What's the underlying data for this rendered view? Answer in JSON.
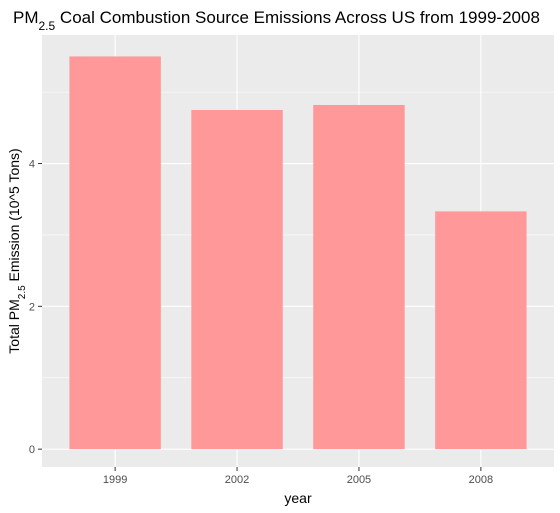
{
  "chart_data": {
    "type": "bar",
    "title": "PM2.5 Coal Combustion Source Emissions Across US from 1999-2008",
    "title_parts": {
      "pre": "PM",
      "sub": "2.5",
      "post": " Coal Combustion Source Emissions Across US from 1999-2008"
    },
    "xlabel": "year",
    "ylabel": "Total PM2.5 Emission (10^5 Tons)",
    "ylabel_parts": {
      "pre": "Total PM",
      "sub": "2.5",
      "post": " Emission (10^5 Tons)"
    },
    "categories": [
      "1999",
      "2002",
      "2005",
      "2008"
    ],
    "values": [
      5.5,
      4.75,
      4.82,
      3.33
    ],
    "yticks": [
      0,
      2,
      4
    ],
    "ylim": [
      -0.25,
      5.8
    ],
    "grid": true,
    "legend": "none",
    "colors": {
      "bar": "#ff9999",
      "panel": "#ebebeb",
      "grid_major": "#ffffff",
      "tick": "#333333",
      "tick_label": "#4d4d4d"
    }
  }
}
